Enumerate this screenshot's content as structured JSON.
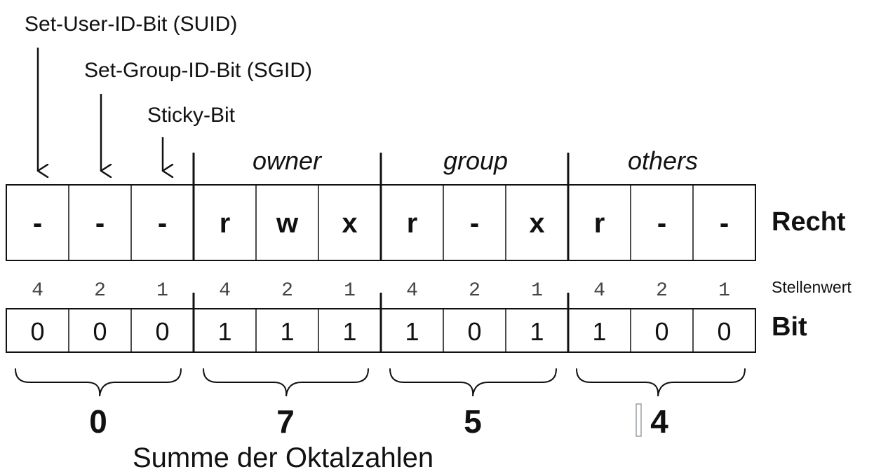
{
  "special_bits": {
    "suid_label": "Set-User-ID-Bit (SUID)",
    "sgid_label": "Set-Group-ID-Bit (SGID)",
    "sticky_label": "Sticky-Bit"
  },
  "groups": {
    "owner": "owner",
    "group": "group",
    "others": "others"
  },
  "row_labels": {
    "recht": "Recht",
    "stellenwert": "Stellenwert",
    "bit": "Bit"
  },
  "rights": [
    "-",
    "-",
    "-",
    "r",
    "w",
    "x",
    "r",
    "-",
    "x",
    "r",
    "-",
    "-"
  ],
  "place_values": [
    "4",
    "2",
    "1",
    "4",
    "2",
    "1",
    "4",
    "2",
    "1",
    "4",
    "2",
    "1"
  ],
  "bits": [
    "0",
    "0",
    "0",
    "1",
    "1",
    "1",
    "1",
    "0",
    "1",
    "1",
    "0",
    "0"
  ],
  "octal_digits": [
    "0",
    "7",
    "5",
    "4"
  ],
  "sum_label": "Summe der Oktalzahlen",
  "colors": {
    "ink": "#111111",
    "place_value_gray": "#444444",
    "cursor_gray": "#9aa0a6"
  }
}
